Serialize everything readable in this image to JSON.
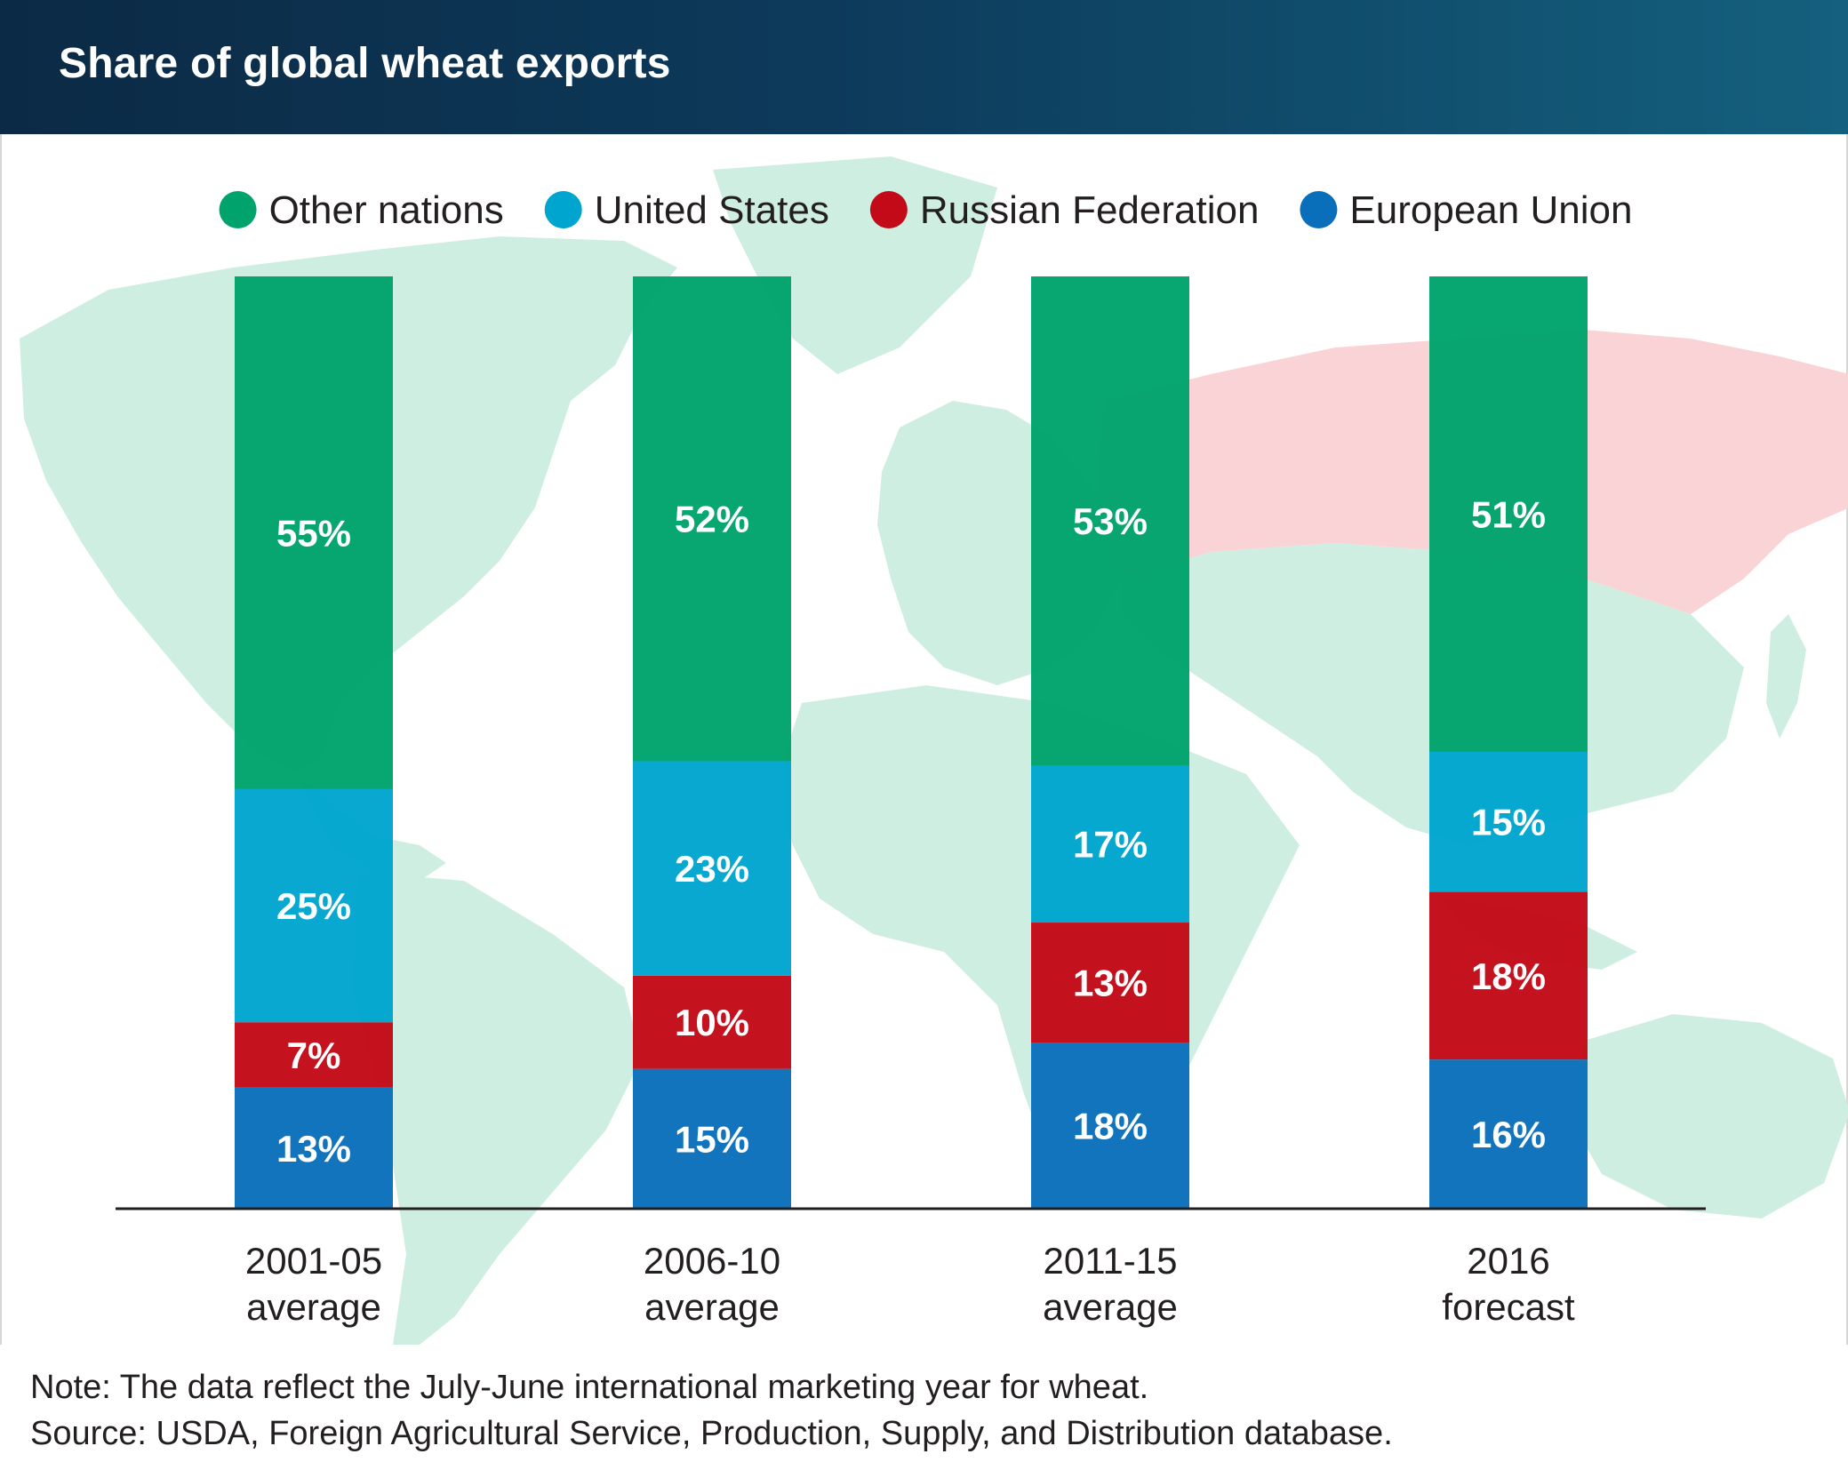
{
  "header": {
    "title": "Share of global wheat exports"
  },
  "footer": {
    "note": "Note: The data reflect the July-June international marketing year for wheat.",
    "source": "Source: USDA, Foreign Agricultural Service, Production, Supply, and Distribution database."
  },
  "chart_data": {
    "type": "bar",
    "stacked": true,
    "title": "Share of global wheat exports",
    "categories": [
      [
        "2001-05",
        "average"
      ],
      [
        "2006-10",
        "average"
      ],
      [
        "2011-15",
        "average"
      ],
      [
        "2016",
        "forecast"
      ]
    ],
    "series": [
      {
        "name": "European Union",
        "color": "#0a6fbb",
        "values": [
          13,
          15,
          18,
          16
        ],
        "labels": [
          "13%",
          "15%",
          "18%",
          "16%"
        ]
      },
      {
        "name": "Russian Federation",
        "color": "#c20a18",
        "values": [
          7,
          10,
          13,
          18
        ],
        "labels": [
          "7%",
          "10%",
          "13%",
          "18%"
        ]
      },
      {
        "name": "United States",
        "color": "#00a5cf",
        "values": [
          25,
          23,
          17,
          15
        ],
        "labels": [
          "25%",
          "23%",
          "17%",
          "15%"
        ]
      },
      {
        "name": "Other nations",
        "color": "#00a36c",
        "values": [
          55,
          52,
          53,
          51
        ],
        "labels": [
          "55%",
          "52%",
          "53%",
          "51%"
        ]
      }
    ],
    "legend": {
      "position": "top",
      "order": [
        "Other nations",
        "United States",
        "Russian Federation",
        "European Union"
      ]
    },
    "ylim": [
      0,
      100
    ],
    "background": "world map",
    "map_colors": {
      "land": "#cfeee2",
      "russia": "#f9d3d6"
    }
  }
}
